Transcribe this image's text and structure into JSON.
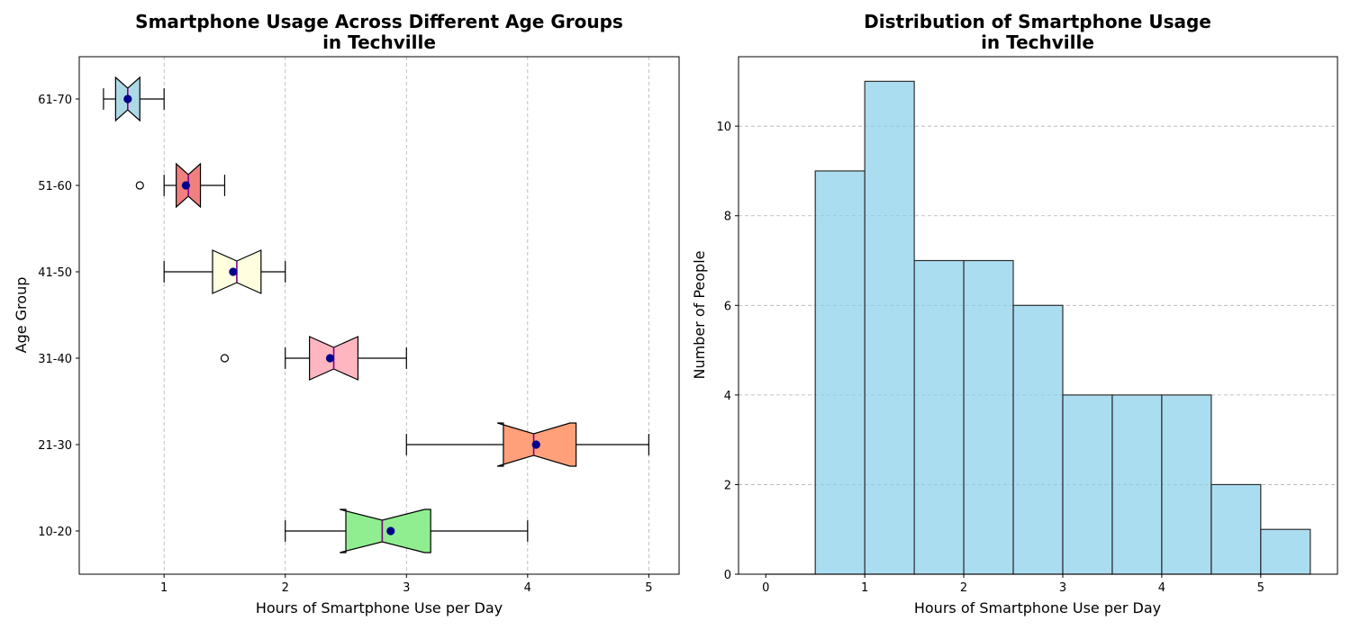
{
  "chart_data": [
    {
      "type": "box",
      "orientation": "horizontal",
      "notched": true,
      "title": [
        "Smartphone Usage Across Different Age Groups",
        "in Techville"
      ],
      "xlabel": "Hours of Smartphone Use per Day",
      "ylabel": "Age Group",
      "xlim": [
        0.3,
        5.25
      ],
      "xticks": [
        "1",
        "2",
        "3",
        "4",
        "5"
      ],
      "grid": "x-dashed",
      "groups": [
        {
          "label": "10-20",
          "color": "#90ee90",
          "whisker_low": 2.0,
          "q1": 2.5,
          "median": 2.8,
          "q3": 3.2,
          "whisker_high": 4.0,
          "notch_low": 2.45,
          "notch_high": 3.15,
          "mean": 2.87,
          "outliers": []
        },
        {
          "label": "21-30",
          "color": "#ffa07a",
          "whisker_low": 3.0,
          "q1": 3.8,
          "median": 4.05,
          "q3": 4.4,
          "whisker_high": 5.0,
          "notch_low": 3.75,
          "notch_high": 4.35,
          "mean": 4.07,
          "outliers": []
        },
        {
          "label": "31-40",
          "color": "#ffb6c1",
          "whisker_low": 2.0,
          "q1": 2.2,
          "median": 2.4,
          "q3": 2.6,
          "whisker_high": 3.0,
          "notch_low": 2.2,
          "notch_high": 2.6,
          "mean": 2.37,
          "outliers": [
            1.5
          ]
        },
        {
          "label": "41-50",
          "color": "#ffffe0",
          "whisker_low": 1.0,
          "q1": 1.4,
          "median": 1.6,
          "q3": 1.8,
          "whisker_high": 2.0,
          "notch_low": 1.4,
          "notch_high": 1.8,
          "mean": 1.57,
          "outliers": []
        },
        {
          "label": "51-60",
          "color": "#f08080",
          "whisker_low": 1.0,
          "q1": 1.1,
          "median": 1.2,
          "q3": 1.3,
          "whisker_high": 1.5,
          "notch_low": 1.1,
          "notch_high": 1.3,
          "mean": 1.18,
          "outliers": [
            0.8
          ]
        },
        {
          "label": "61-70",
          "color": "#add8e6",
          "whisker_low": 0.5,
          "q1": 0.6,
          "median": 0.7,
          "q3": 0.8,
          "whisker_high": 1.0,
          "notch_low": 0.6,
          "notch_high": 0.8,
          "mean": 0.7,
          "outliers": []
        }
      ]
    },
    {
      "type": "histogram",
      "title": [
        "Distribution of Smartphone Usage",
        "in Techville"
      ],
      "xlabel": "Hours of Smartphone Use per Day",
      "ylabel": "Number of People",
      "xlim": [
        -0.275,
        5.775
      ],
      "ylim": [
        0,
        11.55
      ],
      "xticks": [
        "0",
        "1",
        "2",
        "3",
        "4",
        "5"
      ],
      "yticks": [
        "0",
        "2",
        "4",
        "6",
        "8",
        "10"
      ],
      "grid": "y-dashed",
      "color": "#87ceeb",
      "bin_edges": [
        0,
        0.5,
        1.0,
        1.5,
        2.0,
        2.5,
        3.0,
        3.5,
        4.0,
        4.5,
        5.0,
        5.5
      ],
      "counts": [
        0,
        9,
        11,
        7,
        7,
        6,
        4,
        4,
        4,
        2,
        1
      ]
    }
  ],
  "colors": {
    "median_line": "#800080",
    "mean_marker": "#00008b",
    "hist_edge": "#2f2f2f"
  }
}
